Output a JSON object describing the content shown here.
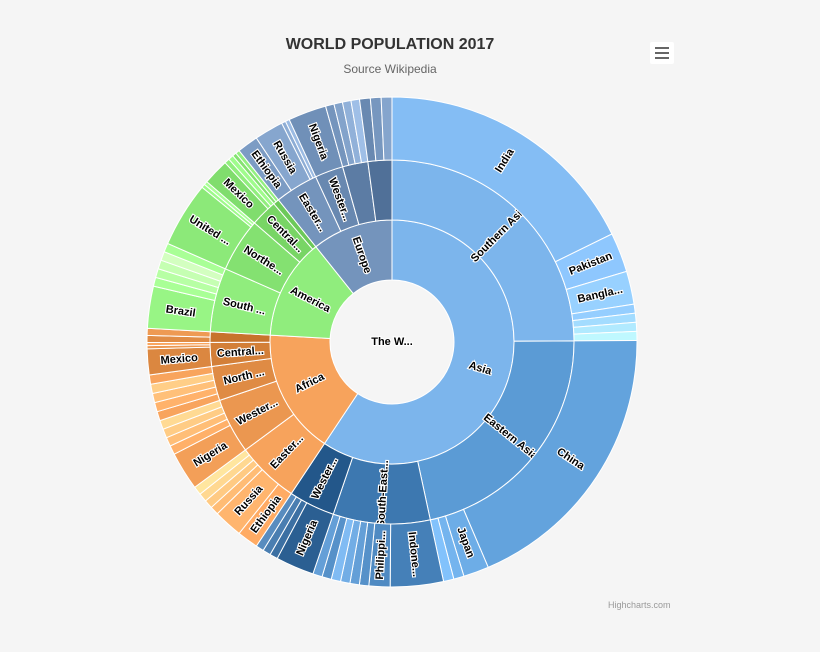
{
  "title": "WORLD POPULATION 2017",
  "subtitle": "Source Wikipedia",
  "credits": "Highcharts.com",
  "menu_icon": "hamburger-menu-icon",
  "colors": {
    "asia": "#7cb5ec",
    "southern_asia": "#7cb5ec",
    "eastern_asia": "#5b9bd5",
    "south_eastern_asia": "#3d78b0",
    "western_asia": "#23578a",
    "africa": "#f7a35c",
    "america": "#90ed7d",
    "europe": "#7494bc",
    "background": "#f5f5f5"
  },
  "chart_data": {
    "type": "sunburst",
    "title": "WORLD POPULATION 2017",
    "subtitle": "Source Wikipedia",
    "root": {
      "label": "The W...",
      "value": 7550
    },
    "continents": [
      {
        "name": "Asia",
        "label": "Asia",
        "value": 4480
      },
      {
        "name": "Africa",
        "label": "Africa",
        "value": 1250
      },
      {
        "name": "America",
        "label": "America",
        "value": 1010
      },
      {
        "name": "Europe",
        "label": "Europe",
        "value": 810
      }
    ],
    "regions": [
      {
        "parent": "Asia",
        "label": "Southern Asia",
        "value": 1880
      },
      {
        "parent": "Asia",
        "label": "Eastern Asia",
        "value": 1640
      },
      {
        "parent": "Asia",
        "label": "South-East...",
        "value": 650
      },
      {
        "parent": "Asia",
        "label": "Wester...",
        "value": 310
      },
      {
        "parent": "Africa",
        "label": "Easter...",
        "value": 420
      },
      {
        "parent": "Africa",
        "label": "Wester...",
        "value": 370
      },
      {
        "parent": "Africa",
        "label": "North ...",
        "value": 230
      },
      {
        "parent": "Africa",
        "label": "Central...",
        "value": 160
      },
      {
        "parent": "Africa",
        "label": "",
        "value": 70
      },
      {
        "parent": "America",
        "label": "South ...",
        "value": 430
      },
      {
        "parent": "America",
        "label": "Northe...",
        "value": 360
      },
      {
        "parent": "America",
        "label": "Central...",
        "value": 180
      },
      {
        "parent": "America",
        "label": "",
        "value": 40
      },
      {
        "parent": "Europe",
        "label": "Easter...",
        "value": 290
      },
      {
        "parent": "Europe",
        "label": "Wester...",
        "value": 190
      },
      {
        "parent": "Europe",
        "label": "",
        "value": 170
      },
      {
        "parent": "Europe",
        "label": "",
        "value": 160
      }
    ],
    "countries": [
      {
        "region": "Southern Asia",
        "label": "India",
        "value": 1339
      },
      {
        "region": "Southern Asia",
        "label": "Pakistan",
        "value": 197
      },
      {
        "region": "Southern Asia",
        "label": "Bangla...",
        "value": 165
      },
      {
        "region": "Eastern Asia",
        "label": "China",
        "value": 1410
      },
      {
        "region": "Eastern Asia",
        "label": "Japan",
        "value": 127
      },
      {
        "region": "South-East...",
        "label": "Indone...",
        "value": 264
      },
      {
        "region": "South-East...",
        "label": "Philippi...",
        "value": 105
      },
      {
        "region": "Easter...",
        "label": "Ethiopia",
        "value": 105
      },
      {
        "region": "Wester...",
        "label": "Nigeria",
        "value": 191
      },
      {
        "region": "South ...",
        "label": "Brazil",
        "value": 209
      },
      {
        "region": "Northe...",
        "label": "United ...",
        "value": 324
      },
      {
        "region": "Central...",
        "label": "Mexico",
        "value": 129
      },
      {
        "region": "Easter...",
        "label": "Russia",
        "value": 144
      }
    ]
  }
}
